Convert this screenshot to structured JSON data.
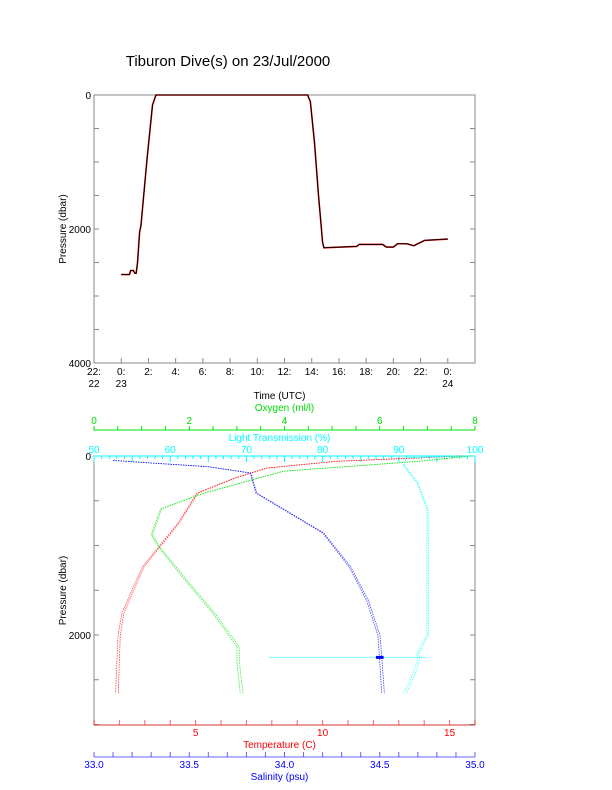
{
  "title": "Tiburon Dive(s) on 23/Jul/2000",
  "colors": {
    "temperature": "#ff0000",
    "salinity": "#0000ff",
    "oxygen": "#00e000",
    "light": "#00ffff",
    "depth": "#000000",
    "axis": "#888888"
  },
  "chart_data": [
    {
      "type": "line",
      "title": "Tiburon Dive(s) on 23/Jul/2000",
      "xlabel": "Time (UTC)",
      "ylabel": "Pressure (dbar)",
      "xlim_hours": [
        -2,
        26
      ],
      "ylim": [
        4000,
        0
      ],
      "x_ticks": [
        {
          "h": -2,
          "l1": "22:",
          "l2": "22"
        },
        {
          "h": 0,
          "l1": "0:",
          "l2": "23"
        },
        {
          "h": 2,
          "l1": "2:",
          "l2": ""
        },
        {
          "h": 4,
          "l1": "4:",
          "l2": ""
        },
        {
          "h": 6,
          "l1": "6:",
          "l2": ""
        },
        {
          "h": 8,
          "l1": "8:",
          "l2": ""
        },
        {
          "h": 10,
          "l1": "10:",
          "l2": ""
        },
        {
          "h": 12,
          "l1": "12:",
          "l2": ""
        },
        {
          "h": 14,
          "l1": "14:",
          "l2": ""
        },
        {
          "h": 16,
          "l1": "16:",
          "l2": ""
        },
        {
          "h": 18,
          "l1": "18:",
          "l2": ""
        },
        {
          "h": 20,
          "l1": "20:",
          "l2": ""
        },
        {
          "h": 22,
          "l1": "22:",
          "l2": ""
        },
        {
          "h": 24,
          "l1": "0:",
          "l2": "24"
        }
      ],
      "y_ticks": [
        "0",
        "2000",
        "4000"
      ],
      "series": [
        {
          "name": "pressure",
          "x": [
            0,
            0.6,
            0.7,
            0.9,
            1.0,
            1.1,
            1.2,
            1.35,
            1.45,
            1.9,
            2.3,
            2.55,
            13.7,
            13.9,
            14.2,
            14.5,
            14.8,
            14.9,
            17.3,
            17.5,
            19.2,
            19.5,
            20.0,
            20.3,
            21.0,
            21.5,
            22.0,
            22.3,
            24.0
          ],
          "y": [
            2680,
            2680,
            2620,
            2620,
            2660,
            2660,
            2500,
            2050,
            1950,
            950,
            150,
            0,
            0,
            100,
            700,
            1500,
            2200,
            2280,
            2260,
            2230,
            2230,
            2270,
            2270,
            2220,
            2220,
            2250,
            2200,
            2170,
            2150
          ]
        }
      ]
    },
    {
      "type": "line",
      "ylabel": "Pressure (dbar)",
      "ylim": [
        3000,
        0
      ],
      "y_ticks": [
        "0",
        "2000"
      ],
      "axes": {
        "oxygen": {
          "label": "Oxygen (ml/l)",
          "lim": [
            0,
            8
          ],
          "ticks": [
            "0",
            "2",
            "4",
            "6",
            "8"
          ]
        },
        "light": {
          "label": "Light Transmission (%)",
          "lim": [
            50,
            100
          ],
          "ticks": [
            "50",
            "60",
            "70",
            "80",
            "90",
            "100"
          ]
        },
        "temperature": {
          "label": "Temperature (C)",
          "lim": [
            1,
            16
          ],
          "ticks": [
            "5",
            "10",
            "15"
          ]
        },
        "salinity": {
          "label": "Salinity (psu)",
          "lim": [
            33.0,
            35.0
          ],
          "ticks": [
            "33.0",
            "33.5",
            "34.0",
            "34.5",
            "35.0"
          ]
        }
      },
      "series": [
        {
          "name": "Temperature",
          "axis": "temperature",
          "p": [
            0,
            60,
            134,
            250,
            415,
            750,
            1240,
            1755,
            2000,
            2300,
            2650
          ],
          "v": [
            15.5,
            10.5,
            7.8,
            6.5,
            5.05,
            4.3,
            2.9,
            2.1,
            1.95,
            1.9,
            1.85
          ]
        },
        {
          "name": "Salinity",
          "axis": "salinity",
          "p": [
            50,
            120,
            190,
            415,
            860,
            1240,
            1610,
            2000,
            2300,
            2650
          ],
          "v": [
            33.1,
            33.6,
            33.82,
            33.85,
            34.2,
            34.34,
            34.43,
            34.49,
            34.5,
            34.51
          ]
        },
        {
          "name": "Oxygen",
          "axis": "oxygen",
          "p": [
            0,
            60,
            170,
            415,
            590,
            880,
            1030,
            1380,
            1760,
            2130,
            2300,
            2650
          ],
          "v": [
            7.9,
            6.8,
            3.97,
            2.3,
            1.4,
            1.2,
            1.37,
            1.9,
            2.5,
            3.0,
            3.0,
            3.07
          ]
        },
        {
          "name": "Light Transmission",
          "axis": "light",
          "p": [
            0,
            20,
            100,
            300,
            600,
            1000,
            2000,
            2200,
            2300,
            2500,
            2650
          ],
          "v": [
            99,
            91,
            90.6,
            92.4,
            93.7,
            93.7,
            93.7,
            92.4,
            92.4,
            91.5,
            90.6
          ]
        }
      ]
    }
  ]
}
